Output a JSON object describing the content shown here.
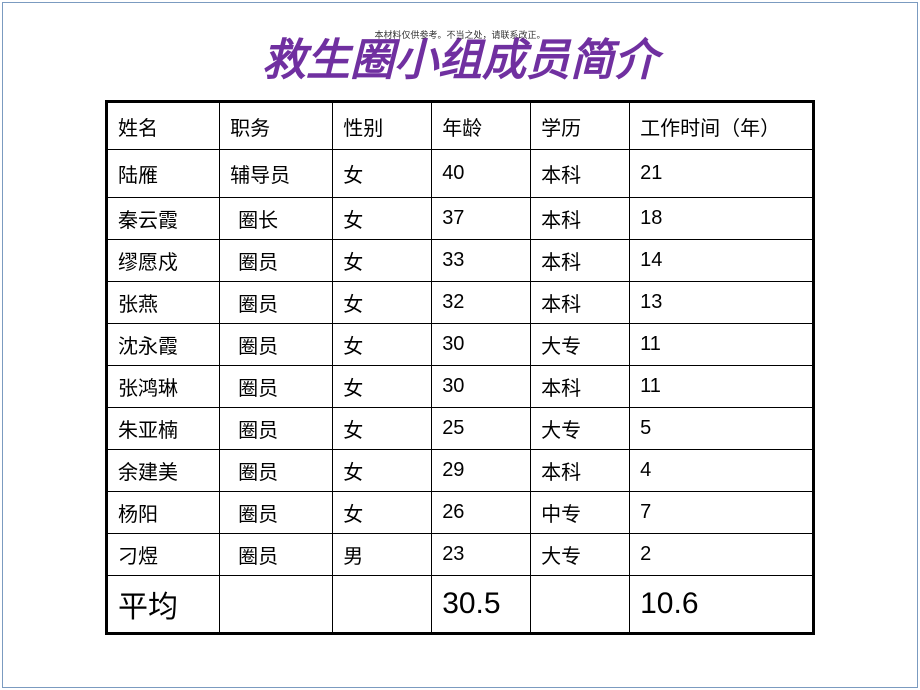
{
  "title": "救生圈小组成员简介",
  "subtitle": "本材料仅供参考。不当之处，请联系改正。",
  "colors": {
    "title_color": "#7030a0",
    "border_color": "#000000",
    "slide_border": "#7b9bc0",
    "background": "#ffffff",
    "text": "#000000"
  },
  "typography": {
    "title_fontsize": 44,
    "title_weight": "bold",
    "title_style": "italic",
    "header_fontsize": 20,
    "body_fontsize": 20,
    "footer_fontsize": 30
  },
  "table": {
    "columns": [
      {
        "key": "name",
        "label": "姓名",
        "width_pct": 16
      },
      {
        "key": "role",
        "label": "职务",
        "width_pct": 16
      },
      {
        "key": "gender",
        "label": "性别",
        "width_pct": 14
      },
      {
        "key": "age",
        "label": "年龄",
        "width_pct": 14
      },
      {
        "key": "education",
        "label": "学历",
        "width_pct": 14
      },
      {
        "key": "years",
        "label": "工作时间（年）",
        "width_pct": 26
      }
    ],
    "rows": [
      {
        "name": "陆雁",
        "role": "辅导员",
        "gender": "女",
        "age": "40",
        "education": "本科",
        "years": "21",
        "indent": false
      },
      {
        "name": "秦云霞",
        "role": "圈长",
        "gender": "女",
        "age": "37",
        "education": "本科",
        "years": "18",
        "indent": true
      },
      {
        "name": "缪愿戍",
        "role": "圈员",
        "gender": "女",
        "age": "33",
        "education": "本科",
        "years": "14",
        "indent": true
      },
      {
        "name": "张燕",
        "role": "圈员",
        "gender": "女",
        "age": "32",
        "education": "本科",
        "years": "13",
        "indent": true
      },
      {
        "name": "沈永霞",
        "role": "圈员",
        "gender": "女",
        "age": "30",
        "education": "大专",
        "years": "11",
        "indent": true
      },
      {
        "name": "张鸿琳",
        "role": "圈员",
        "gender": "女",
        "age": "30",
        "education": "本科",
        "years": "11",
        "indent": true
      },
      {
        "name": "朱亚楠",
        "role": "圈员",
        "gender": "女",
        "age": "25",
        "education": "大专",
        "years": "5",
        "indent": true
      },
      {
        "name": "余建美",
        "role": "圈员",
        "gender": "女",
        "age": "29",
        "education": "本科",
        "years": "4",
        "indent": true
      },
      {
        "name": "杨阳",
        "role": "圈员",
        "gender": "女",
        "age": "26",
        "education": "中专",
        "years": "7",
        "indent": true
      },
      {
        "name": "刁煜",
        "role": "圈员",
        "gender": "男",
        "age": "23",
        "education": "大专",
        "years": "2",
        "indent": true
      }
    ],
    "footer": {
      "label": "平均",
      "age_avg": "30.5",
      "years_avg": "10.6"
    }
  }
}
